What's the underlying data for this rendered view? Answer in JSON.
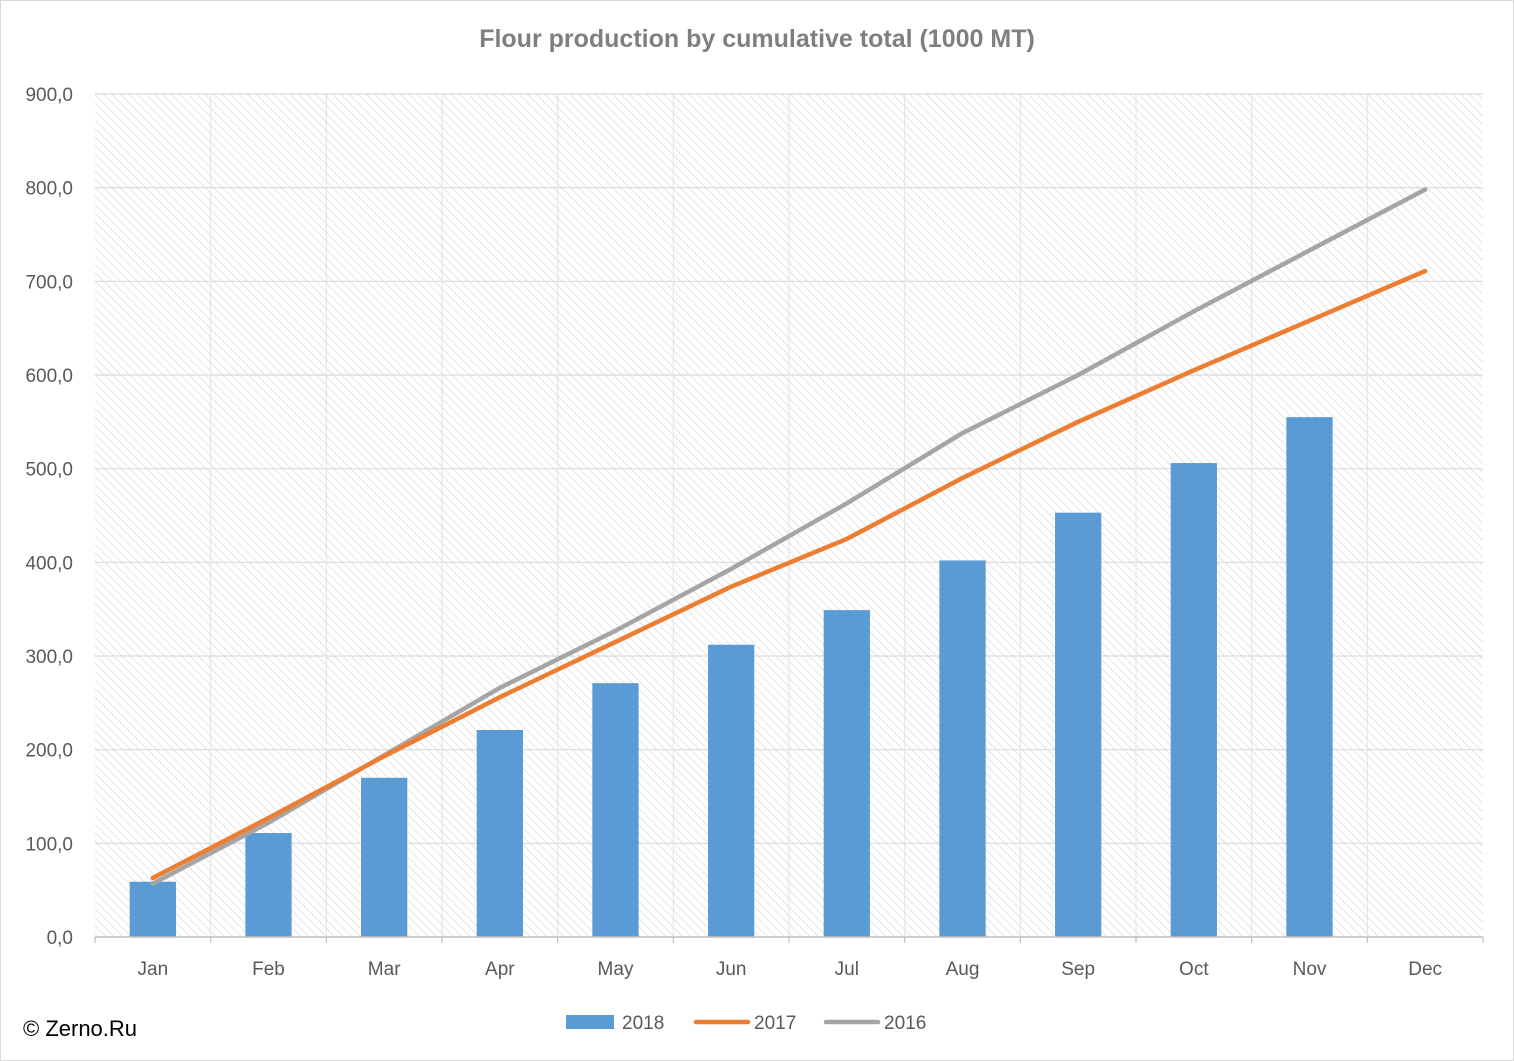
{
  "chart_data": {
    "type": "bar",
    "title": "Flour production by cumulative total (1000 MT)",
    "xlabel": "",
    "ylabel": "",
    "categories": [
      "Jan",
      "Feb",
      "Mar",
      "Apr",
      "May",
      "Jun",
      "Jul",
      "Aug",
      "Sep",
      "Oct",
      "Nov",
      "Dec"
    ],
    "ylim": [
      0,
      900
    ],
    "yticks": [
      "0,0",
      "100,0",
      "200,0",
      "300,0",
      "400,0",
      "500,0",
      "600,0",
      "700,0",
      "800,0",
      "900,0"
    ],
    "grid": true,
    "legend_position": "bottom",
    "series": [
      {
        "name": "2018",
        "type": "bar",
        "color": "#5b9bd5",
        "values": [
          59,
          111,
          170,
          221,
          271,
          312,
          349,
          402,
          453,
          506,
          555,
          null
        ]
      },
      {
        "name": "2017",
        "type": "line",
        "color": "#ed7d31",
        "values": [
          63,
          127,
          193,
          256,
          315,
          374,
          425,
          490,
          550,
          605,
          658,
          711
        ]
      },
      {
        "name": "2016",
        "type": "line",
        "color": "#a5a5a5",
        "values": [
          57,
          122,
          194,
          266,
          327,
          393,
          463,
          538,
          600,
          668,
          733,
          798
        ]
      }
    ]
  },
  "copyright": "© Zerno.Ru"
}
